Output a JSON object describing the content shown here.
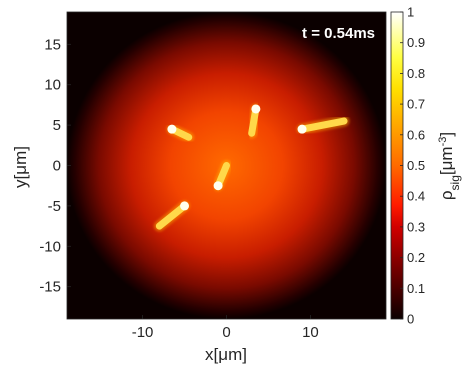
{
  "chart_data": {
    "type": "heatmap",
    "annotation": "t = 0.54ms",
    "xlabel": "x[μm]",
    "ylabel": "y[μm]",
    "colorbar_label": "ρsig[μm-3]",
    "colorbar_label_main": "ρ",
    "colorbar_label_sub": "sig",
    "colorbar_label_unit": "[μm",
    "colorbar_label_exp": "-3",
    "colorbar_label_close": "]",
    "xlim": [
      -19,
      19
    ],
    "ylim": [
      -19,
      19
    ],
    "clim": [
      0,
      1
    ],
    "colormap": "hot",
    "x_ticks": [
      {
        "value": -10,
        "label": "-10"
      },
      {
        "value": 0,
        "label": "0"
      },
      {
        "value": 10,
        "label": "10"
      }
    ],
    "y_ticks": [
      {
        "value": 15,
        "label": "15"
      },
      {
        "value": 10,
        "label": "10"
      },
      {
        "value": 5,
        "label": "5"
      },
      {
        "value": 0,
        "label": "0"
      },
      {
        "value": -5,
        "label": "-5"
      },
      {
        "value": -10,
        "label": "-10"
      },
      {
        "value": -15,
        "label": "-15"
      }
    ],
    "colorbar_ticks": [
      {
        "value": 1,
        "label": "1"
      },
      {
        "value": 0.9,
        "label": "0.9"
      },
      {
        "value": 0.8,
        "label": "0.8"
      },
      {
        "value": 0.7,
        "label": "0.7"
      },
      {
        "value": 0.6,
        "label": "0.6"
      },
      {
        "value": 0.5,
        "label": "0.5"
      },
      {
        "value": 0.4,
        "label": "0.4"
      },
      {
        "value": 0.3,
        "label": "0.3"
      },
      {
        "value": 0.2,
        "label": "0.2"
      },
      {
        "value": 0.1,
        "label": "0.1"
      },
      {
        "value": 0,
        "label": "0"
      }
    ],
    "field": {
      "center": [
        0,
        0
      ],
      "radius": 19,
      "peak": 0.55
    },
    "cells": [
      {
        "head": [
          -6.5,
          4.5
        ],
        "tail": [
          -4.5,
          3.5
        ]
      },
      {
        "head": [
          3.5,
          7.0
        ],
        "tail": [
          3.0,
          4.0
        ]
      },
      {
        "head": [
          9.0,
          4.5
        ],
        "tail": [
          14.0,
          5.5
        ]
      },
      {
        "head": [
          -1.0,
          -2.5
        ],
        "tail": [
          0.0,
          0.0
        ]
      },
      {
        "head": [
          -5.0,
          -5.0
        ],
        "tail": [
          -8.0,
          -7.5
        ]
      }
    ]
  }
}
